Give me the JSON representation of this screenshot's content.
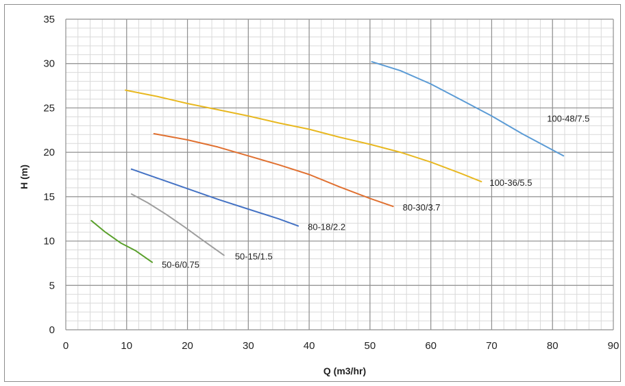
{
  "chart_data": {
    "type": "line",
    "xlabel": "Q (m3/hr)",
    "ylabel": "H (m)",
    "xlim": [
      0,
      90
    ],
    "ylim": [
      0,
      35
    ],
    "xticks": [
      0,
      10,
      20,
      30,
      40,
      50,
      60,
      70,
      80,
      90
    ],
    "yticks": [
      0,
      5,
      10,
      15,
      20,
      25,
      30,
      35
    ],
    "grid": true,
    "series": [
      {
        "name": "50-6/0.75",
        "color": "#5aa02c",
        "points": [
          [
            4.2,
            12.3
          ],
          [
            6.5,
            11.0
          ],
          [
            9.0,
            9.8
          ],
          [
            11.5,
            8.9
          ],
          [
            14.2,
            7.6
          ]
        ]
      },
      {
        "name": "50-15/1.5",
        "color": "#9e9e9e",
        "points": [
          [
            10.8,
            15.3
          ],
          [
            13.5,
            14.3
          ],
          [
            16.5,
            13.0
          ],
          [
            19.5,
            11.6
          ],
          [
            22.5,
            10.1
          ],
          [
            26.0,
            8.4
          ]
        ]
      },
      {
        "name": "80-18/2.2",
        "color": "#4472c4",
        "points": [
          [
            10.8,
            18.1
          ],
          [
            15.0,
            17.1
          ],
          [
            20.0,
            15.9
          ],
          [
            25.0,
            14.7
          ],
          [
            30.0,
            13.6
          ],
          [
            35.0,
            12.5
          ],
          [
            38.2,
            11.7
          ]
        ]
      },
      {
        "name": "80-30/3.7",
        "color": "#e07030",
        "points": [
          [
            14.5,
            22.1
          ],
          [
            20.0,
            21.4
          ],
          [
            25.0,
            20.6
          ],
          [
            30.0,
            19.6
          ],
          [
            35.0,
            18.6
          ],
          [
            40.0,
            17.5
          ],
          [
            45.0,
            16.1
          ],
          [
            50.0,
            14.8
          ],
          [
            53.8,
            13.9
          ]
        ]
      },
      {
        "name": "100-36/5.5",
        "color": "#e8b820",
        "points": [
          [
            9.8,
            27.0
          ],
          [
            15.0,
            26.3
          ],
          [
            20.0,
            25.5
          ],
          [
            25.0,
            24.8
          ],
          [
            30.0,
            24.1
          ],
          [
            35.0,
            23.3
          ],
          [
            40.0,
            22.6
          ],
          [
            45.0,
            21.7
          ],
          [
            50.0,
            20.9
          ],
          [
            55.0,
            20.0
          ],
          [
            60.0,
            18.9
          ],
          [
            65.0,
            17.6
          ],
          [
            68.3,
            16.7
          ]
        ]
      },
      {
        "name": "100-48/7.5",
        "color": "#5b9bd5",
        "points": [
          [
            50.3,
            30.2
          ],
          [
            55.0,
            29.2
          ],
          [
            60.0,
            27.7
          ],
          [
            65.0,
            25.9
          ],
          [
            70.0,
            24.1
          ],
          [
            75.0,
            22.1
          ],
          [
            81.8,
            19.6
          ]
        ]
      }
    ]
  }
}
